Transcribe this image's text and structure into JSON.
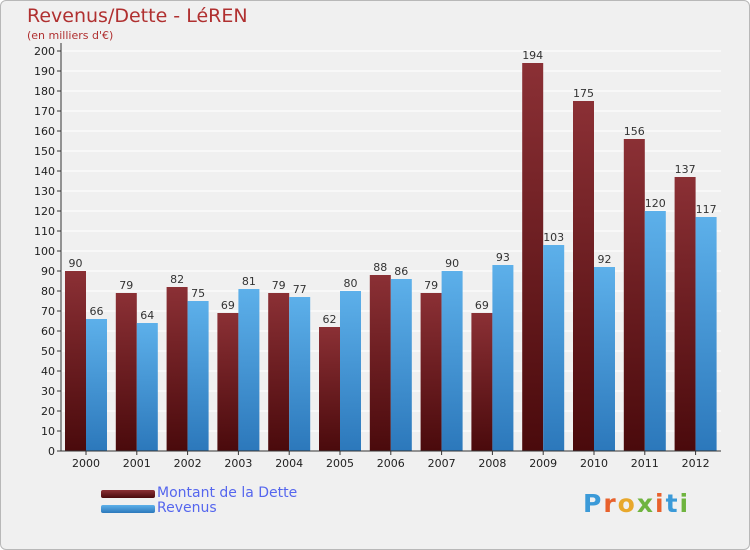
{
  "title": "Revenus/Dette - LéREN",
  "subtitle": "(en milliers d'€)",
  "legend": {
    "dette_label": "Montant de la Dette",
    "revenus_label": "Revenus"
  },
  "colors": {
    "dette_top": "#8b3035",
    "dette_bottom": "#4a0a0c",
    "revenus_top": "#5db0ea",
    "revenus_bottom": "#2c78bb",
    "axis": "#333333",
    "grid": "#ffffff",
    "title": "#b03030"
  },
  "logo": "Proxiti",
  "chart_data": {
    "type": "bar",
    "title": "Revenus/Dette - LéREN",
    "subtitle": "(en milliers d'€)",
    "categories": [
      "2000",
      "2001",
      "2002",
      "2003",
      "2004",
      "2005",
      "2006",
      "2007",
      "2008",
      "2009",
      "2010",
      "2011",
      "2012"
    ],
    "series": [
      {
        "name": "Montant de la Dette",
        "values": [
          90,
          79,
          82,
          69,
          79,
          62,
          88,
          79,
          69,
          194,
          175,
          156,
          137
        ]
      },
      {
        "name": "Revenus",
        "values": [
          66,
          64,
          75,
          81,
          77,
          80,
          86,
          90,
          93,
          103,
          92,
          120,
          117
        ]
      }
    ],
    "ylim": [
      0,
      200
    ],
    "ytick_step": 10,
    "grid": true,
    "legend_position": "bottom-left"
  }
}
